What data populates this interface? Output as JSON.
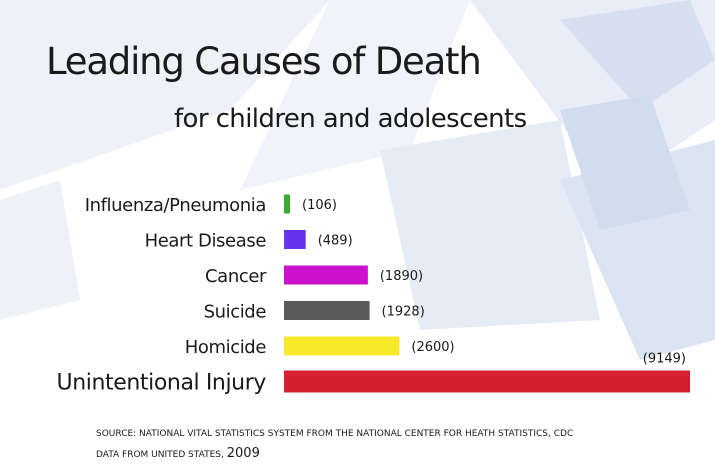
{
  "title": "Leading Causes of Death",
  "subtitle": "for children and adolescents",
  "source": {
    "line1": "SOURCE: NATIONAL VITAL STATISTICS SYSTEM FROM THE NATIONAL CENTER FOR HEATH STATISTICS, CDC",
    "line2_prefix": "DATA FROM UNITED STATES,",
    "year": "2009"
  },
  "chart_data": {
    "type": "bar",
    "orientation": "horizontal",
    "categories": [
      "Influenza/Pneumonia",
      "Heart Disease",
      "Cancer",
      "Suicide",
      "Homicide",
      "Unintentional Injury"
    ],
    "values": [
      106,
      489,
      1890,
      1928,
      2600,
      9149
    ],
    "value_labels": [
      "(106)",
      "(489)",
      "(1890)",
      "(1928)",
      "(2600)",
      "(9149)"
    ],
    "colors": [
      "#3aaa35",
      "#6633ee",
      "#cc11cc",
      "#5a5a5a",
      "#f7ea2a",
      "#d42030"
    ],
    "xlim": [
      0,
      9149
    ],
    "grid": false,
    "legend": "none"
  }
}
